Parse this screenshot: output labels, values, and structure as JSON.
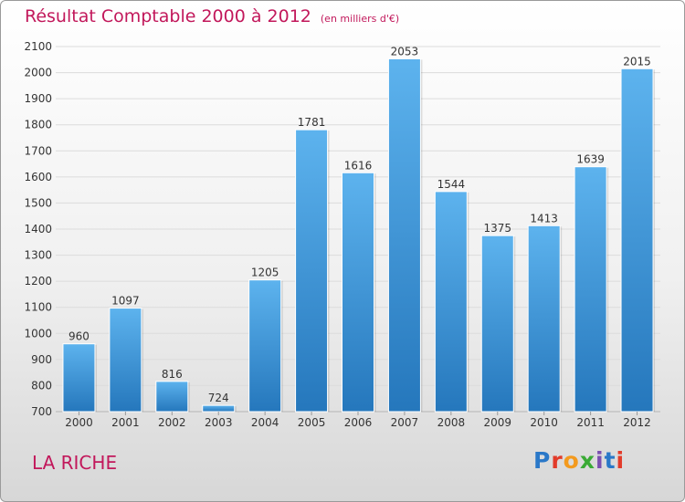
{
  "title": "Résultat Comptable 2000 à 2012",
  "unit_note": "(en milliers d'€)",
  "location": "LA RICHE",
  "logo_text": "Proxiti",
  "colors": {
    "title": "#c2185b",
    "bar_top": "#5db3ee",
    "bar_bottom": "#2577bc"
  },
  "chart_data": {
    "type": "bar",
    "title": "Résultat Comptable 2000 à 2012",
    "subtitle": "(en milliers d'€)",
    "xlabel": "",
    "ylabel": "",
    "categories": [
      "2000",
      "2001",
      "2002",
      "2003",
      "2004",
      "2005",
      "2006",
      "2007",
      "2008",
      "2009",
      "2010",
      "2011",
      "2012"
    ],
    "values": [
      960,
      1097,
      816,
      724,
      1205,
      1781,
      1616,
      2053,
      1544,
      1375,
      1413,
      1639,
      2015
    ],
    "ylim": [
      700,
      2100
    ],
    "yticks": [
      700,
      800,
      900,
      1000,
      1100,
      1200,
      1300,
      1400,
      1500,
      1600,
      1700,
      1800,
      1900,
      2000,
      2100
    ],
    "grid": true
  }
}
